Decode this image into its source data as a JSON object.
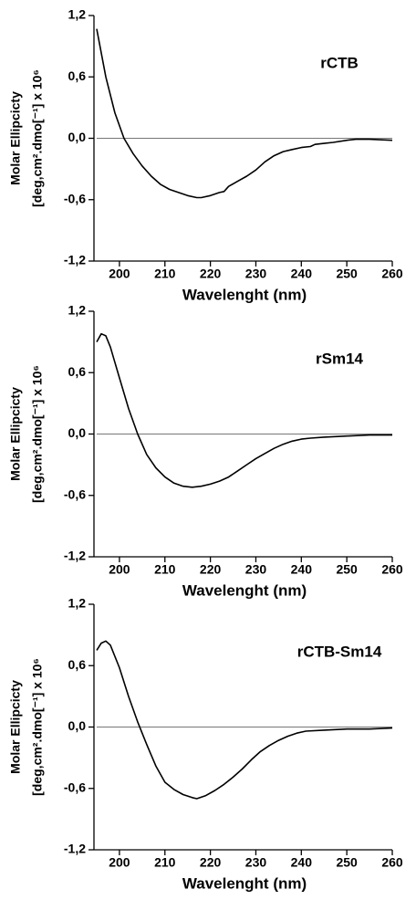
{
  "chart_data": [
    {
      "type": "line",
      "title": "rCTB",
      "xlabel": "Wavelenght (nm)",
      "ylabel": [
        "Molar Ellipcicty",
        "[deg,cm².dmo[⁻¹] x 10⁶"
      ],
      "x": [
        195,
        197,
        199,
        201,
        203,
        205,
        207,
        209,
        211,
        213,
        215,
        217,
        218,
        220,
        222,
        223,
        224,
        226,
        228,
        230,
        232,
        234,
        236,
        238,
        240,
        242,
        243,
        245,
        247,
        250,
        252,
        255,
        260
      ],
      "series": [
        {
          "color": "#000000",
          "values": [
            1.07,
            0.6,
            0.25,
            0.0,
            -0.15,
            -0.27,
            -0.37,
            -0.45,
            -0.5,
            -0.53,
            -0.56,
            -0.58,
            -0.58,
            -0.56,
            -0.53,
            -0.52,
            -0.47,
            -0.42,
            -0.37,
            -0.31,
            -0.23,
            -0.17,
            -0.13,
            -0.11,
            -0.09,
            -0.08,
            -0.06,
            -0.05,
            -0.04,
            -0.02,
            -0.01,
            -0.01,
            -0.02
          ]
        }
      ],
      "xlim": [
        195,
        260
      ],
      "xticks": [
        200,
        210,
        220,
        230,
        240,
        250,
        260
      ],
      "ylim": [
        -1.2,
        1.2
      ],
      "yticks": [
        {
          "value": -1.2,
          "label": "-1,2"
        },
        {
          "value": -0.6,
          "label": "-0,6"
        },
        {
          "value": 0,
          "label": "0,0"
        },
        {
          "value": 0.6,
          "label": "0,6"
        },
        {
          "value": 1.2,
          "label": "1,2"
        }
      ],
      "reference_line": 0
    },
    {
      "type": "line",
      "title": "rSm14",
      "xlabel": "Wavelenght (nm)",
      "ylabel": [
        "Molar Ellipcicty",
        "[deg,cm².dmo[⁻¹] x 10⁶"
      ],
      "x": [
        195,
        196,
        197,
        198,
        200,
        202,
        204,
        206,
        208,
        210,
        212,
        214,
        216,
        218,
        220,
        222,
        224,
        226,
        228,
        230,
        232,
        234,
        236,
        238,
        240,
        242,
        245,
        250,
        255,
        260
      ],
      "series": [
        {
          "color": "#000000",
          "values": [
            0.9,
            0.98,
            0.96,
            0.85,
            0.55,
            0.25,
            0.0,
            -0.2,
            -0.33,
            -0.42,
            -0.48,
            -0.51,
            -0.52,
            -0.51,
            -0.49,
            -0.46,
            -0.42,
            -0.36,
            -0.3,
            -0.24,
            -0.19,
            -0.14,
            -0.1,
            -0.07,
            -0.05,
            -0.04,
            -0.03,
            -0.02,
            -0.01,
            -0.01
          ]
        }
      ],
      "xlim": [
        195,
        260
      ],
      "xticks": [
        200,
        210,
        220,
        230,
        240,
        250,
        260
      ],
      "ylim": [
        -1.2,
        1.2
      ],
      "yticks": [
        {
          "value": -1.2,
          "label": "-1,2"
        },
        {
          "value": -0.6,
          "label": "-0,6"
        },
        {
          "value": 0,
          "label": "0,0"
        },
        {
          "value": 0.6,
          "label": "0,6"
        },
        {
          "value": 1.2,
          "label": "1,2"
        }
      ],
      "reference_line": 0
    },
    {
      "type": "line",
      "title": "rCTB-Sm14",
      "xlabel": "Wavelenght (nm)",
      "ylabel": [
        "Molar Ellipcicty",
        "[deg,cm².dmo[⁻¹] x 10⁶"
      ],
      "x": [
        195,
        196,
        197,
        198,
        200,
        202,
        204,
        206,
        208,
        210,
        212,
        214,
        216,
        217,
        219,
        221,
        223,
        225,
        227,
        229,
        231,
        233,
        235,
        237,
        239,
        241,
        245,
        250,
        255,
        260
      ],
      "series": [
        {
          "color": "#000000",
          "values": [
            0.75,
            0.82,
            0.84,
            0.8,
            0.58,
            0.3,
            0.05,
            -0.17,
            -0.38,
            -0.54,
            -0.61,
            -0.66,
            -0.69,
            -0.7,
            -0.67,
            -0.62,
            -0.56,
            -0.49,
            -0.41,
            -0.32,
            -0.24,
            -0.18,
            -0.13,
            -0.09,
            -0.06,
            -0.04,
            -0.03,
            -0.02,
            -0.02,
            -0.01
          ]
        }
      ],
      "xlim": [
        195,
        260
      ],
      "xticks": [
        200,
        210,
        220,
        230,
        240,
        250,
        260
      ],
      "ylim": [
        -1.2,
        1.2
      ],
      "yticks": [
        {
          "value": -1.2,
          "label": "-1,2"
        },
        {
          "value": -0.6,
          "label": "-0,6"
        },
        {
          "value": 0,
          "label": "0,0"
        },
        {
          "value": 0.6,
          "label": "0,6"
        },
        {
          "value": 1.2,
          "label": "1,2"
        }
      ],
      "reference_line": 0
    }
  ]
}
